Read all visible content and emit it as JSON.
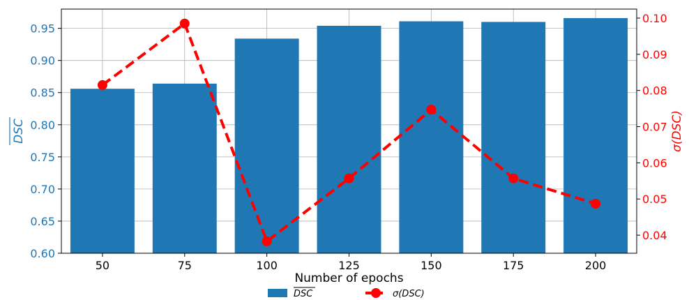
{
  "chart_data": {
    "type": "bar+line",
    "xlabel": "Number of epochs",
    "categories": [
      "50",
      "75",
      "100",
      "125",
      "150",
      "175",
      "200"
    ],
    "series": [
      {
        "name": "DSC",
        "type": "bar",
        "axis": "left",
        "color": "#1f77b4",
        "values": [
          0.856,
          0.864,
          0.934,
          0.954,
          0.961,
          0.96,
          0.966
        ]
      },
      {
        "name": "σ(DSC)",
        "type": "line",
        "axis": "right",
        "color": "#ff0000",
        "line_style": "dashed",
        "marker": "circle",
        "values": [
          0.0815,
          0.0985,
          0.0383,
          0.0557,
          0.0747,
          0.0557,
          0.0487
        ]
      }
    ],
    "yaxis_left": {
      "label": "DSC",
      "label_overline": true,
      "color": "#1f77b4",
      "ylim": [
        0.6,
        0.98
      ],
      "ticks": [
        "0.60",
        "0.65",
        "0.70",
        "0.75",
        "0.80",
        "0.85",
        "0.90",
        "0.95"
      ]
    },
    "yaxis_right": {
      "label": "σ(DSC)",
      "color": "#ff0000",
      "ylim": [
        0.035,
        0.1025
      ],
      "ticks": [
        "0.04",
        "0.05",
        "0.06",
        "0.07",
        "0.08",
        "0.09",
        "0.10"
      ]
    },
    "grid": true,
    "legend": {
      "placement": "bottom-center",
      "entries": [
        "DSC",
        "σ(DSC)"
      ]
    }
  }
}
